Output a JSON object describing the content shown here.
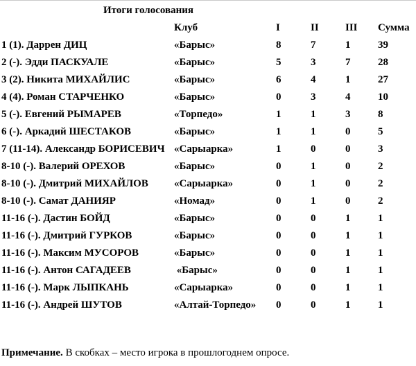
{
  "page": {
    "title": "Итоги голосования",
    "note_label": "Примечание.",
    "note_text": " В скобках – место игрока в прошлогоднем опросе."
  },
  "colors": {
    "text": "#000000",
    "background": "#ffffff",
    "top_edge": "#c9c9c9"
  },
  "table": {
    "headers": {
      "player": "",
      "club": "Клуб",
      "first": "I",
      "second": "II",
      "third": "III",
      "sum": "Сумма"
    },
    "rows": [
      {
        "player": "1 (1). Даррен ДИЦ",
        "club": "«Барыс»",
        "i": "8",
        "ii": "7",
        "iii": "1",
        "sum": "39"
      },
      {
        "player": "2 (-). Эдди ПАСКУАЛЕ",
        "club": "«Барыс»",
        "i": "5",
        "ii": "3",
        "iii": "7",
        "sum": "28"
      },
      {
        "player": "3 (2). Никита МИХАЙЛИС",
        "club": "«Барыс»",
        "i": "6",
        "ii": "4",
        "iii": "1",
        "sum": "27"
      },
      {
        "player": "4 (4). Роман СТАРЧЕНКО",
        "club": "«Барыс»",
        "i": "0",
        "ii": "3",
        "iii": "4",
        "sum": "10"
      },
      {
        "player": "5 (-). Евгений РЫМАРЕВ",
        "club": "«Торпедо»",
        "i": "1",
        "ii": "1",
        "iii": "3",
        "sum": "8"
      },
      {
        "player": "6 (-). Аркадий ШЕСТАКОВ",
        "club": "«Барыс»",
        "i": "1",
        "ii": "1",
        "iii": "0",
        "sum": "5"
      },
      {
        "player": "7 (11-14). Александр БОРИСЕВИЧ",
        "club": "«Сарыарка»",
        "i": "1",
        "ii": "0",
        "iii": "0",
        "sum": "3"
      },
      {
        "player": "8-10 (-). Валерий ОРЕХОВ",
        "club": "«Барыс»",
        "i": "0",
        "ii": "1",
        "iii": "0",
        "sum": "2"
      },
      {
        "player": "8-10 (-). Дмитрий МИХАЙЛОВ",
        "club": "«Сарыарка»",
        "i": "0",
        "ii": "1",
        "iii": "0",
        "sum": "2"
      },
      {
        "player": "8-10 (-). Самат ДАНИЯР",
        "club": "«Номад»",
        "i": "0",
        "ii": "1",
        "iii": "0",
        "sum": "2"
      },
      {
        "player": "11-16 (-). Дастин БОЙД",
        "club": "«Барыс»",
        "i": "0",
        "ii": "0",
        "iii": "1",
        "sum": "1"
      },
      {
        "player": "11-16 (-). Дмитрий ГУРКОВ",
        "club": "«Барыс»",
        "i": "0",
        "ii": "0",
        "iii": "1",
        "sum": "1"
      },
      {
        "player": "11-16 (-). Максим МУСОРОВ",
        "club": "«Барыс»",
        "i": "0",
        "ii": "0",
        "iii": "1",
        "sum": "1"
      },
      {
        "player": "11-16 (-). Антон САГАДЕЕВ",
        "club": " «Барыс»",
        "i": "0",
        "ii": "0",
        "iii": "1",
        "sum": "1"
      },
      {
        "player": "11-16 (-). Марк ЛЫПКАНЬ",
        "club": "«Сарыарка»",
        "i": "0",
        "ii": "0",
        "iii": "1",
        "sum": "1"
      },
      {
        "player": "11-16 (-). Андрей ШУТОВ",
        "club": "«Алтай-Торпедо»",
        "i": "0",
        "ii": "0",
        "iii": "1",
        "sum": "1"
      }
    ]
  }
}
